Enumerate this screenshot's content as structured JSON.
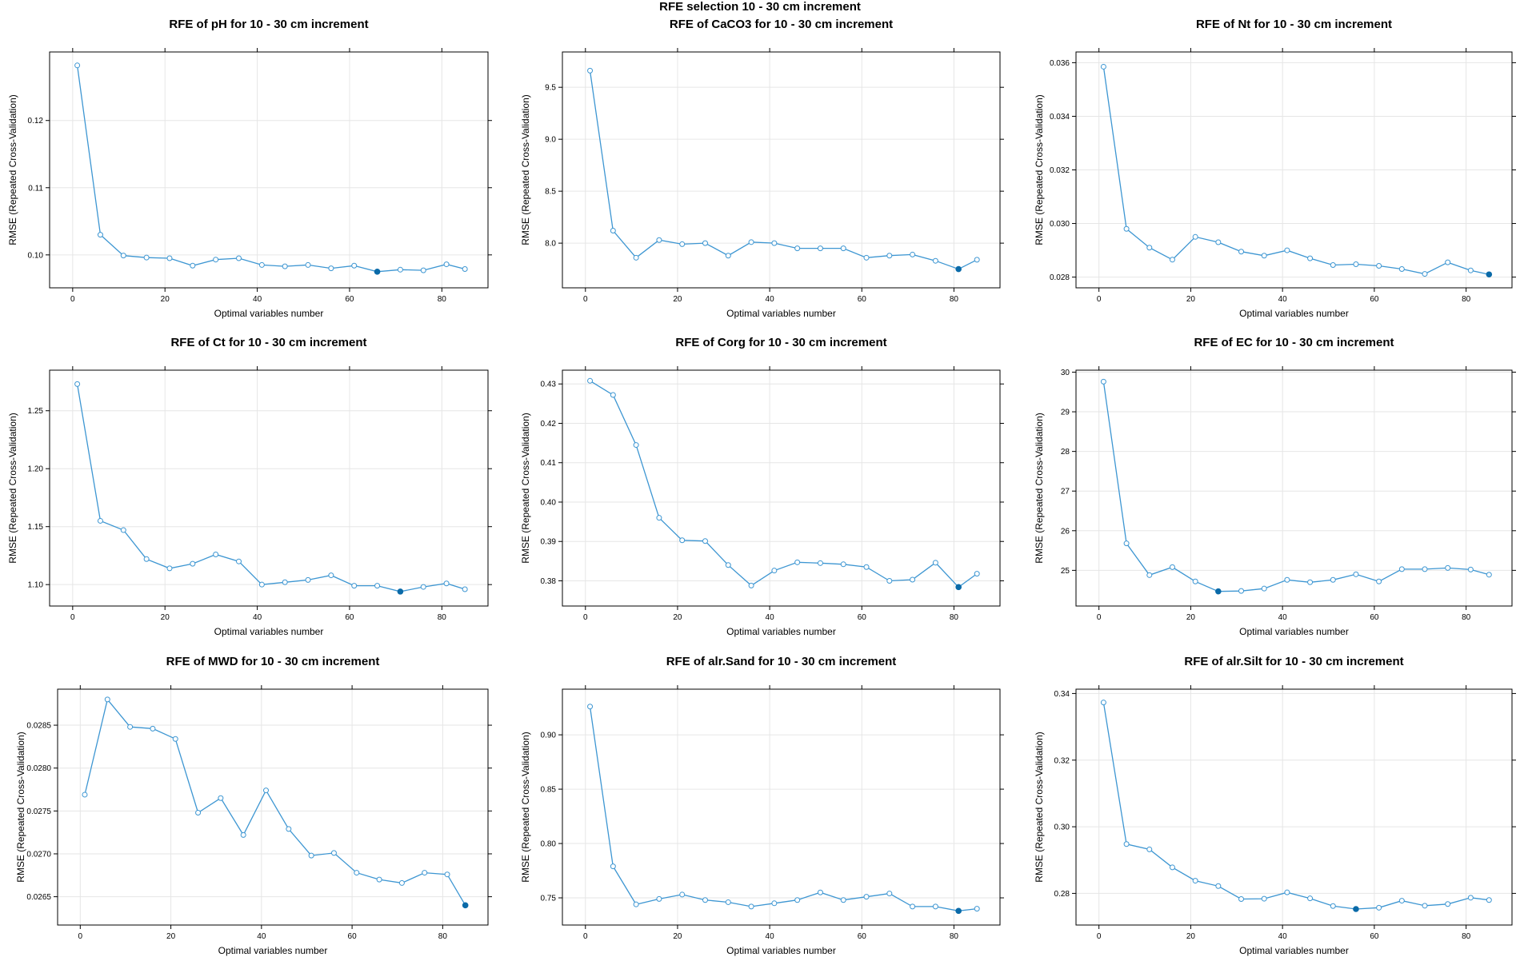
{
  "title": "RFE selection 10 - 30 cm increment",
  "colors": {
    "line": "#3d96d2",
    "point_fill": "#ffffff",
    "selected": "#0a6aa8",
    "grid": "#e6e6e6",
    "frame": "#000000"
  },
  "chart_data": [
    {
      "type": "line",
      "title": "RFE of pH for 10 - 30 cm increment",
      "xlabel": "Optimal variables number",
      "ylabel": "RMSE (Repeated Cross-Validation)",
      "xlim": [
        -5,
        90
      ],
      "ylim": [
        0.0951,
        0.1302
      ],
      "xticks": [
        0,
        20,
        40,
        60,
        80
      ],
      "yticks": [
        0.1,
        0.11,
        0.12
      ],
      "ytick_labels": [
        "0.10",
        "0.11",
        "0.12"
      ],
      "x": [
        1,
        6,
        11,
        16,
        21,
        26,
        31,
        36,
        41,
        46,
        51,
        56,
        61,
        66,
        71,
        76,
        81,
        85
      ],
      "y": [
        0.1282,
        0.103,
        0.0999,
        0.0996,
        0.0995,
        0.0984,
        0.0993,
        0.0995,
        0.0985,
        0.0983,
        0.0985,
        0.098,
        0.0984,
        0.0975,
        0.0978,
        0.0977,
        0.0986,
        0.0979
      ],
      "selected_index": 13
    },
    {
      "type": "line",
      "title": "RFE of CaCO3 for 10 - 30 cm increment",
      "xlabel": "Optimal variables number",
      "ylabel": "RMSE (Repeated Cross-Validation)",
      "xlim": [
        -5,
        90
      ],
      "ylim": [
        7.57,
        9.84
      ],
      "xticks": [
        0,
        20,
        40,
        60,
        80
      ],
      "yticks": [
        8.0,
        8.5,
        9.0,
        9.5
      ],
      "ytick_labels": [
        "8.0",
        "8.5",
        "9.0",
        "9.5"
      ],
      "x": [
        1,
        6,
        11,
        16,
        21,
        26,
        31,
        36,
        41,
        46,
        51,
        56,
        61,
        66,
        71,
        76,
        81,
        85
      ],
      "y": [
        9.66,
        8.12,
        7.86,
        8.03,
        7.99,
        8.0,
        7.88,
        8.01,
        8.0,
        7.95,
        7.95,
        7.95,
        7.86,
        7.88,
        7.89,
        7.83,
        7.75,
        7.84
      ],
      "selected_index": 16
    },
    {
      "type": "line",
      "title": "RFE of Nt for 10 - 30 cm increment",
      "xlabel": "Optimal variables number",
      "ylabel": "RMSE (Repeated Cross-Validation)",
      "xlim": [
        -5,
        90
      ],
      "ylim": [
        0.0276,
        0.0364
      ],
      "xticks": [
        0,
        20,
        40,
        60,
        80
      ],
      "yticks": [
        0.028,
        0.03,
        0.032,
        0.034,
        0.036
      ],
      "ytick_labels": [
        "0.028",
        "0.030",
        "0.032",
        "0.034",
        "0.036"
      ],
      "x": [
        1,
        6,
        11,
        16,
        21,
        26,
        31,
        36,
        41,
        46,
        51,
        56,
        61,
        66,
        71,
        76,
        81,
        85
      ],
      "y": [
        0.03585,
        0.0298,
        0.0291,
        0.02865,
        0.0295,
        0.0293,
        0.02895,
        0.0288,
        0.029,
        0.0287,
        0.02845,
        0.02848,
        0.02842,
        0.0283,
        0.02812,
        0.02855,
        0.02825,
        0.0281
      ],
      "selected_index": 17
    },
    {
      "type": "line",
      "title": "RFE of Ct for 10 - 30 cm increment",
      "xlabel": "Optimal variables number",
      "ylabel": "RMSE (Repeated Cross-Validation)",
      "xlim": [
        -5,
        90
      ],
      "ylim": [
        1.0815,
        1.285
      ],
      "xticks": [
        0,
        20,
        40,
        60,
        80
      ],
      "yticks": [
        1.1,
        1.15,
        1.2,
        1.25
      ],
      "ytick_labels": [
        "1.10",
        "1.15",
        "1.20",
        "1.25"
      ],
      "x": [
        1,
        6,
        11,
        16,
        21,
        26,
        31,
        36,
        41,
        46,
        51,
        56,
        61,
        66,
        71,
        76,
        81,
        85
      ],
      "y": [
        1.273,
        1.155,
        1.147,
        1.122,
        1.114,
        1.118,
        1.126,
        1.12,
        1.1,
        1.102,
        1.104,
        1.108,
        1.099,
        1.099,
        1.094,
        1.098,
        1.101,
        1.096
      ],
      "selected_index": 14
    },
    {
      "type": "line",
      "title": "RFE of Corg for 10 - 30 cm increment",
      "xlabel": "Optimal variables number",
      "ylabel": "RMSE (Repeated Cross-Validation)",
      "xlim": [
        -5,
        90
      ],
      "ylim": [
        0.3736,
        0.4335
      ],
      "xticks": [
        0,
        20,
        40,
        60,
        80
      ],
      "yticks": [
        0.38,
        0.39,
        0.4,
        0.41,
        0.42,
        0.43
      ],
      "ytick_labels": [
        "0.38",
        "0.39",
        "0.40",
        "0.41",
        "0.42",
        "0.43"
      ],
      "x": [
        1,
        6,
        11,
        16,
        21,
        26,
        31,
        36,
        41,
        46,
        51,
        56,
        61,
        66,
        71,
        76,
        81,
        85
      ],
      "y": [
        0.4308,
        0.4272,
        0.4145,
        0.396,
        0.3903,
        0.3901,
        0.384,
        0.3788,
        0.3826,
        0.3847,
        0.3845,
        0.3842,
        0.3835,
        0.38,
        0.3803,
        0.3846,
        0.3784,
        0.3818
      ],
      "selected_index": 16
    },
    {
      "type": "line",
      "title": "RFE of EC for 10 - 30 cm increment",
      "xlabel": "Optimal variables number",
      "ylabel": "RMSE (Repeated Cross-Validation)",
      "xlim": [
        -5,
        90
      ],
      "ylim": [
        24.1,
        30.05
      ],
      "xticks": [
        0,
        20,
        40,
        60,
        80
      ],
      "yticks": [
        25,
        26,
        27,
        28,
        29,
        30
      ],
      "ytick_labels": [
        "25",
        "26",
        "27",
        "28",
        "29",
        "30"
      ],
      "x": [
        1,
        6,
        11,
        16,
        21,
        26,
        31,
        36,
        41,
        46,
        51,
        56,
        61,
        66,
        71,
        76,
        81,
        85
      ],
      "y": [
        29.76,
        25.68,
        24.88,
        25.08,
        24.72,
        24.47,
        24.48,
        24.54,
        24.76,
        24.7,
        24.76,
        24.9,
        24.72,
        25.03,
        25.03,
        25.06,
        25.02,
        24.89
      ],
      "selected_index": 5
    },
    {
      "type": "line",
      "title": "RFE of MWD for 10 - 30 cm increment",
      "xlabel": "Optimal variables number",
      "ylabel": "RMSE (Repeated Cross-Validation)",
      "xlim": [
        -5,
        90
      ],
      "ylim": [
        0.02617,
        0.02892
      ],
      "xticks": [
        0,
        20,
        40,
        60,
        80
      ],
      "yticks": [
        0.0265,
        0.027,
        0.0275,
        0.028,
        0.0285
      ],
      "ytick_labels": [
        "0.0265",
        "0.0270",
        "0.0275",
        "0.0280",
        "0.0285"
      ],
      "x": [
        1,
        6,
        11,
        16,
        21,
        26,
        31,
        36,
        41,
        46,
        51,
        56,
        61,
        66,
        71,
        76,
        81,
        85
      ],
      "y": [
        0.02769,
        0.0288,
        0.02848,
        0.02846,
        0.02834,
        0.02748,
        0.02765,
        0.02722,
        0.02774,
        0.02729,
        0.02698,
        0.02701,
        0.02678,
        0.0267,
        0.02666,
        0.02678,
        0.02676,
        0.0264
      ],
      "selected_index": 17
    },
    {
      "type": "line",
      "title": "RFE of alr.Sand for 10 - 30 cm increment",
      "xlabel": "Optimal variables number",
      "ylabel": "RMSE (Repeated Cross-Validation)",
      "xlim": [
        -5,
        90
      ],
      "ylim": [
        0.725,
        0.942
      ],
      "xticks": [
        0,
        20,
        40,
        60,
        80
      ],
      "yticks": [
        0.75,
        0.8,
        0.85,
        0.9
      ],
      "ytick_labels": [
        "0.75",
        "0.80",
        "0.85",
        "0.90"
      ],
      "x": [
        1,
        6,
        11,
        16,
        21,
        26,
        31,
        36,
        41,
        46,
        51,
        56,
        61,
        66,
        71,
        76,
        81,
        85
      ],
      "y": [
        0.926,
        0.779,
        0.744,
        0.749,
        0.753,
        0.748,
        0.746,
        0.742,
        0.745,
        0.748,
        0.755,
        0.748,
        0.751,
        0.754,
        0.742,
        0.742,
        0.738,
        0.74
      ],
      "selected_index": 16
    },
    {
      "type": "line",
      "title": "RFE of alr.Silt for 10 - 30 cm increment",
      "xlabel": "Optimal variables number",
      "ylabel": "RMSE (Repeated Cross-Validation)",
      "xlim": [
        -5,
        90
      ],
      "ylim": [
        0.2705,
        0.3413
      ],
      "xticks": [
        0,
        20,
        40,
        60,
        80
      ],
      "yticks": [
        0.28,
        0.3,
        0.32,
        0.34
      ],
      "ytick_labels": [
        "0.28",
        "0.30",
        "0.32",
        "0.34"
      ],
      "x": [
        1,
        6,
        11,
        16,
        21,
        26,
        31,
        36,
        41,
        46,
        51,
        56,
        61,
        66,
        71,
        76,
        81,
        85
      ],
      "y": [
        0.3373,
        0.2948,
        0.2932,
        0.2878,
        0.2838,
        0.2822,
        0.2783,
        0.2784,
        0.2803,
        0.2785,
        0.2762,
        0.2753,
        0.2757,
        0.2778,
        0.2763,
        0.2768,
        0.2787,
        0.278
      ],
      "selected_index": 11
    }
  ]
}
